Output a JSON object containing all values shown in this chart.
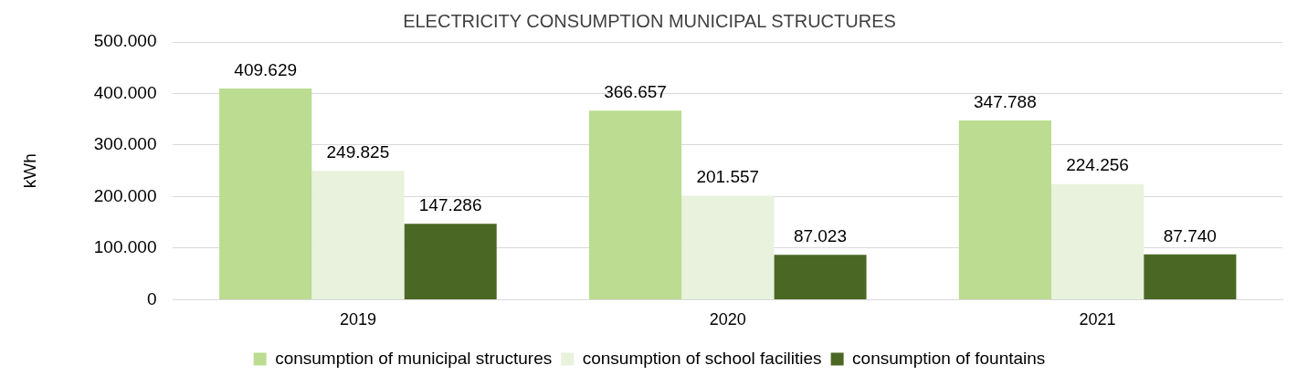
{
  "chart_data": {
    "type": "bar",
    "title": "ELECTRICITY CONSUMPTION MUNICIPAL STRUCTURES",
    "ylabel": "kWh",
    "categories": [
      "2019",
      "2020",
      "2021"
    ],
    "series": [
      {
        "name": "consumption of municipal structures",
        "color": "#bbdc91",
        "values": [
          409629,
          366657,
          347788
        ],
        "value_labels": [
          "409.629",
          "366.657",
          "347.788"
        ]
      },
      {
        "name": "consumption of school facilities",
        "color": "#e8f2dc",
        "values": [
          249825,
          201557,
          224256
        ],
        "value_labels": [
          "249.825",
          "201.557",
          "224.256"
        ]
      },
      {
        "name": "consumption of fountains",
        "color": "#4a6824",
        "values": [
          147286,
          87023,
          87740
        ],
        "value_labels": [
          "147.286",
          "87.023",
          "87.740"
        ]
      }
    ],
    "ylim": [
      0,
      500000
    ],
    "yticks": [
      {
        "value": 0,
        "label": "0"
      },
      {
        "value": 100000,
        "label": "100.000"
      },
      {
        "value": 200000,
        "label": "200.000"
      },
      {
        "value": 300000,
        "label": "300.000"
      },
      {
        "value": 400000,
        "label": "400.000"
      },
      {
        "value": 500000,
        "label": "500.000"
      }
    ],
    "grid": "y",
    "legend": "bottom"
  }
}
